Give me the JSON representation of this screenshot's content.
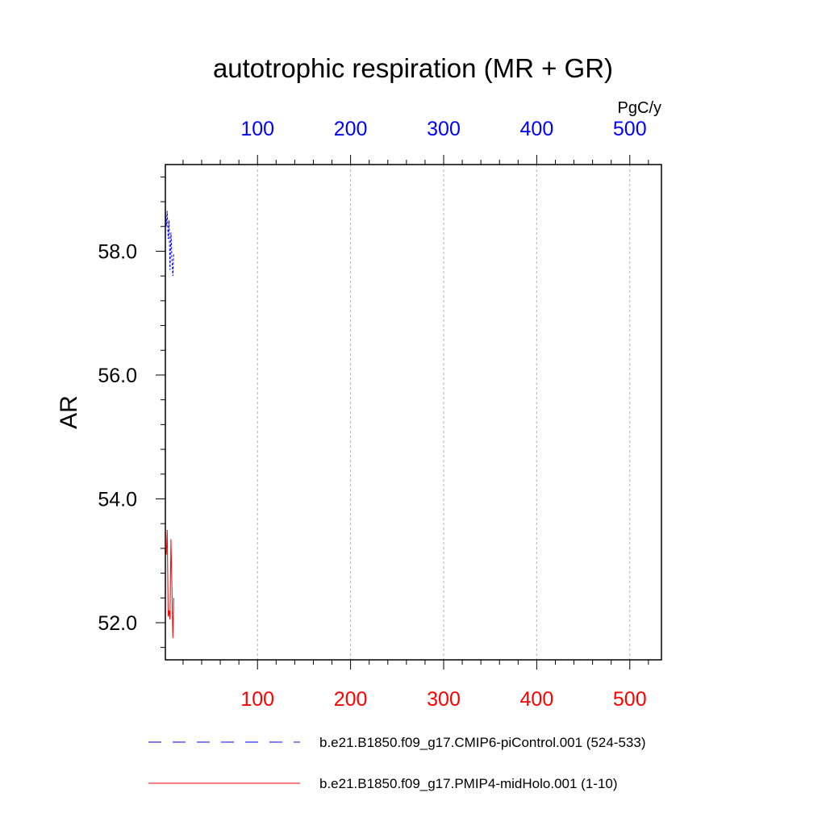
{
  "chart_data": {
    "type": "line",
    "title": "autotrophic respiration (MR + GR)",
    "units": "PgC/y",
    "ylabel": "AR",
    "xlim": [
      1,
      534
    ],
    "ylim": [
      51.4,
      59.4
    ],
    "x_ticks": [
      100,
      200,
      300,
      400,
      500
    ],
    "y_ticks": [
      52.0,
      54.0,
      56.0,
      58.0
    ],
    "y_tick_labels": [
      "52.0",
      "54.0",
      "56.0",
      "58.0"
    ],
    "x_tick_labels": [
      "100",
      "200",
      "300",
      "400",
      "500"
    ],
    "top_axis_color": "#0000ff",
    "bottom_axis_color": "#ff0000",
    "grid_x": true,
    "legend_position": "bottom",
    "series": [
      {
        "name": "b.e21.B1850.f09_g17.CMIP6-piControl.001 (524-533)",
        "color": "#0000ff",
        "dash": true,
        "x": [
          1,
          2,
          3,
          4,
          5,
          6,
          7,
          8,
          9,
          10
        ],
        "y": [
          58.7,
          58.4,
          58.65,
          58.2,
          58.5,
          57.7,
          58.3,
          57.9,
          57.6,
          57.95
        ]
      },
      {
        "name": "b.e21.B1850.f09_g17.PMIP4-midHolo.001 (1-10)",
        "color": "#ff0000",
        "dash": false,
        "x": [
          1,
          2,
          3,
          4,
          5,
          6,
          7,
          8,
          9,
          10
        ],
        "y": [
          53.2,
          53.1,
          53.5,
          52.1,
          52.2,
          52.05,
          53.35,
          52.6,
          51.75,
          52.4
        ]
      }
    ]
  }
}
